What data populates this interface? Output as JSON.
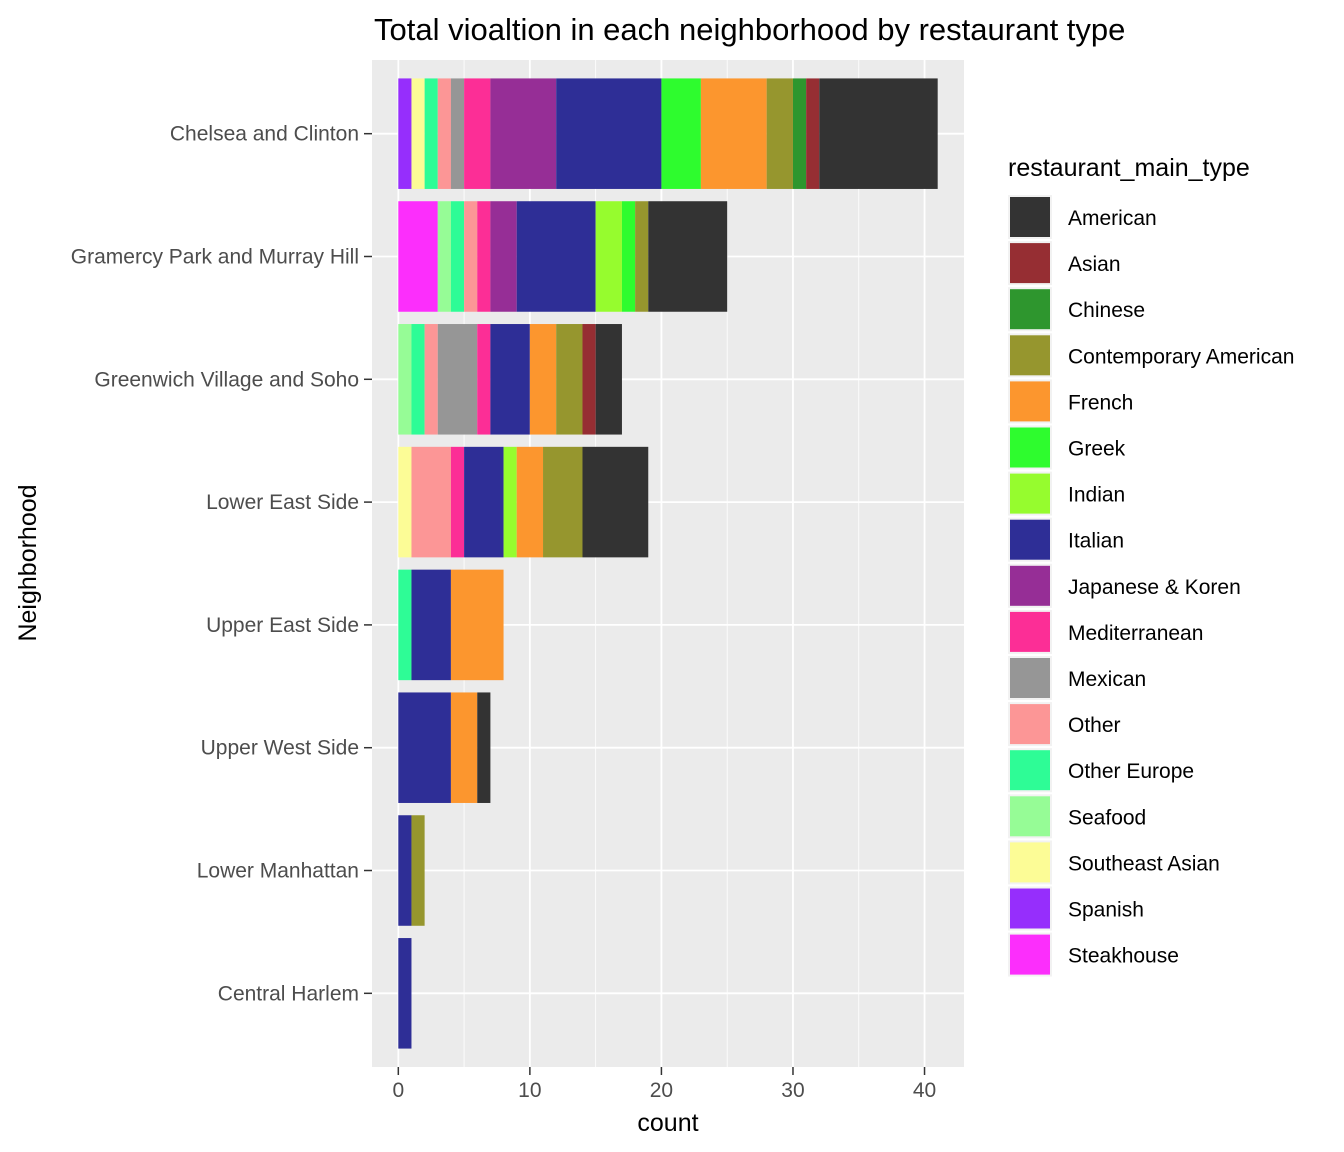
{
  "chart_data": {
    "type": "bar",
    "orientation": "horizontal",
    "stacked": true,
    "title": "Total vioaltion in each neighborhood by restaurant type",
    "xlabel": "count",
    "ylabel": "Neighborhood",
    "xlim": [
      -2,
      43
    ],
    "x_ticks": [
      0,
      10,
      20,
      30,
      40
    ],
    "grid": true,
    "legend_position": "right",
    "legend_title": "restaurant_main_type",
    "categories": [
      "Chelsea and Clinton",
      "Gramercy Park and Murray Hill",
      "Greenwich Village and Soho",
      "Lower East Side ",
      "Upper East Side",
      "Upper West Side",
      "Lower Manhattan",
      "Central Harlem"
    ],
    "stack_order": [
      "Spanish",
      "Steakhouse",
      "Southeast Asian",
      "Seafood",
      "Other Europe",
      "Other",
      "Mexican",
      "Mediterranean",
      "Japanese & Koren",
      "Italian",
      "Indian",
      "Greek",
      "French",
      "Contemporary American",
      "Chinese",
      "Asian",
      "American"
    ],
    "series": [
      {
        "name": "American",
        "color": "#333333",
        "values": [
          9,
          6,
          2,
          5,
          0,
          1,
          0,
          0
        ]
      },
      {
        "name": "Asian",
        "color": "#962e33",
        "values": [
          1,
          0,
          1,
          0,
          0,
          0,
          0,
          0
        ]
      },
      {
        "name": "Chinese",
        "color": "#2e962e",
        "values": [
          1,
          0,
          0,
          0,
          0,
          0,
          0,
          0
        ]
      },
      {
        "name": "Contemporary American",
        "color": "#96962e",
        "values": [
          2,
          1,
          2,
          3,
          0,
          0,
          1,
          0
        ]
      },
      {
        "name": "French",
        "color": "#fc962e",
        "values": [
          5,
          0,
          2,
          2,
          4,
          2,
          0,
          0
        ]
      },
      {
        "name": "Greek",
        "color": "#2efc2e",
        "values": [
          3,
          1,
          0,
          0,
          0,
          0,
          0,
          0
        ]
      },
      {
        "name": "Indian",
        "color": "#96fc2e",
        "values": [
          0,
          2,
          0,
          1,
          0,
          0,
          0,
          0
        ]
      },
      {
        "name": "Italian",
        "color": "#2e2e96",
        "values": [
          8,
          6,
          3,
          3,
          3,
          4,
          1,
          1
        ]
      },
      {
        "name": "Japanese & Koren",
        "color": "#962e96",
        "values": [
          5,
          2,
          0,
          0,
          0,
          0,
          0,
          0
        ]
      },
      {
        "name": "Mediterranean",
        "color": "#fc2e96",
        "values": [
          2,
          1,
          1,
          1,
          0,
          0,
          0,
          0
        ]
      },
      {
        "name": "Mexican",
        "color": "#969696",
        "values": [
          1,
          0,
          3,
          0,
          0,
          0,
          0,
          0
        ]
      },
      {
        "name": "Other",
        "color": "#fc9696",
        "values": [
          1,
          1,
          1,
          3,
          0,
          0,
          0,
          0
        ]
      },
      {
        "name": "Other Europe",
        "color": "#2efc96",
        "values": [
          1,
          1,
          1,
          0,
          1,
          0,
          0,
          0
        ]
      },
      {
        "name": "Seafood",
        "color": "#96fc96",
        "values": [
          0,
          1,
          1,
          0,
          0,
          0,
          0,
          0
        ]
      },
      {
        "name": "Southeast Asian",
        "color": "#fcfc96",
        "values": [
          1,
          0,
          0,
          1,
          0,
          0,
          0,
          0
        ]
      },
      {
        "name": "Spanish",
        "color": "#962efc",
        "values": [
          1,
          0,
          0,
          0,
          0,
          0,
          0,
          0
        ]
      },
      {
        "name": "Steakhouse",
        "color": "#fc2efc",
        "values": [
          0,
          3,
          0,
          0,
          0,
          0,
          0,
          0
        ]
      }
    ]
  }
}
